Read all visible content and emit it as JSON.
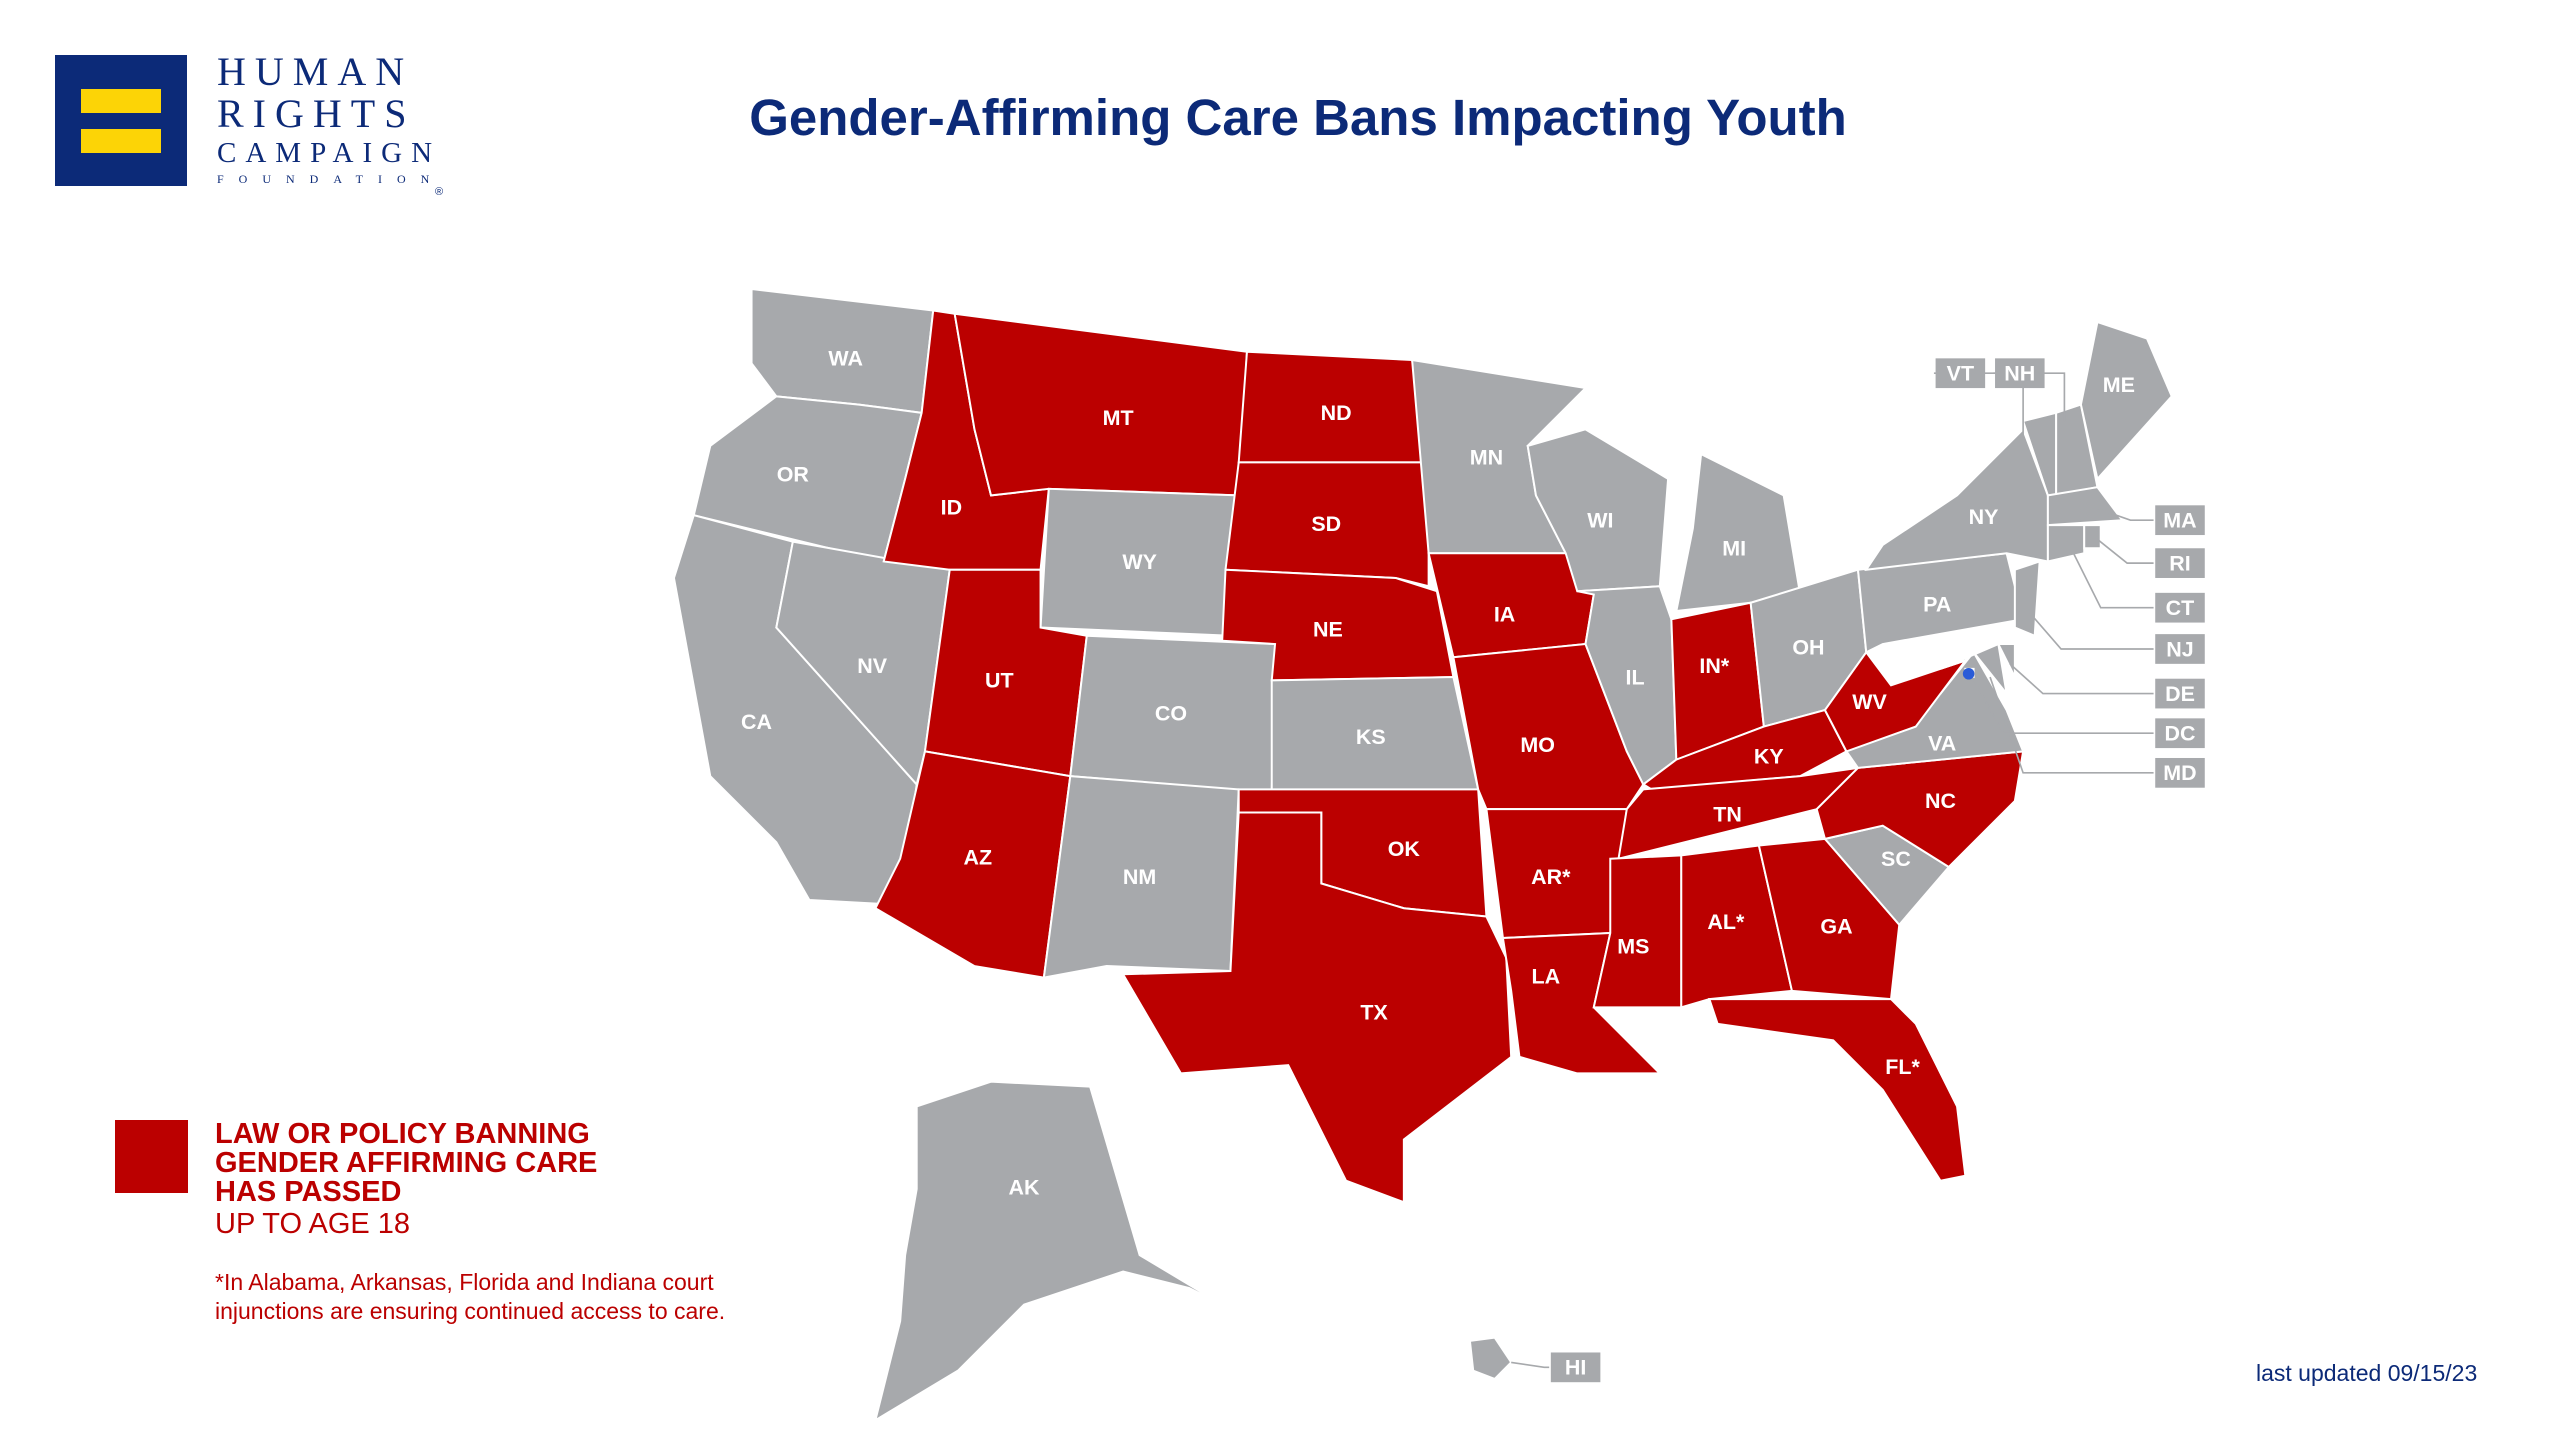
{
  "logo": {
    "line1": "HUMAN",
    "line2": "RIGHTS",
    "line3": "CAMPAIGN",
    "line4": "FOUNDATION",
    "reg": "®"
  },
  "title": "Gender-Affirming Care Bans Impacting Youth",
  "colors": {
    "banned": "#bb0000",
    "not_banned": "#a7a9ac",
    "brand_navy": "#0c2a78",
    "brand_yellow": "#fcd406"
  },
  "legend": {
    "line1": "LAW OR POLICY BANNING",
    "line2": "GENDER AFFIRMING CARE",
    "line3": "HAS PASSED",
    "line4": "UP TO AGE 18",
    "note1": "*In Alabama, Arkansas, Florida and Indiana court",
    "note2": "injunctions are ensuring continued access to care."
  },
  "last_updated": "last updated 09/15/23",
  "states": [
    {
      "abbr": "WA",
      "label": "WA",
      "banned": false
    },
    {
      "abbr": "OR",
      "label": "OR",
      "banned": false
    },
    {
      "abbr": "CA",
      "label": "CA",
      "banned": false
    },
    {
      "abbr": "NV",
      "label": "NV",
      "banned": false
    },
    {
      "abbr": "ID",
      "label": "ID",
      "banned": true
    },
    {
      "abbr": "MT",
      "label": "MT",
      "banned": true
    },
    {
      "abbr": "WY",
      "label": "WY",
      "banned": false
    },
    {
      "abbr": "UT",
      "label": "UT",
      "banned": true
    },
    {
      "abbr": "CO",
      "label": "CO",
      "banned": false
    },
    {
      "abbr": "AZ",
      "label": "AZ",
      "banned": true
    },
    {
      "abbr": "NM",
      "label": "NM",
      "banned": false
    },
    {
      "abbr": "ND",
      "label": "ND",
      "banned": true
    },
    {
      "abbr": "SD",
      "label": "SD",
      "banned": true
    },
    {
      "abbr": "NE",
      "label": "NE",
      "banned": true
    },
    {
      "abbr": "KS",
      "label": "KS",
      "banned": false
    },
    {
      "abbr": "OK",
      "label": "OK",
      "banned": true
    },
    {
      "abbr": "TX",
      "label": "TX",
      "banned": true
    },
    {
      "abbr": "MN",
      "label": "MN",
      "banned": false
    },
    {
      "abbr": "IA",
      "label": "IA",
      "banned": true
    },
    {
      "abbr": "MO",
      "label": "MO",
      "banned": true
    },
    {
      "abbr": "AR",
      "label": "AR*",
      "banned": true
    },
    {
      "abbr": "LA",
      "label": "LA",
      "banned": true
    },
    {
      "abbr": "WI",
      "label": "WI",
      "banned": false
    },
    {
      "abbr": "IL",
      "label": "IL",
      "banned": false
    },
    {
      "abbr": "MI",
      "label": "MI",
      "banned": false
    },
    {
      "abbr": "IN",
      "label": "IN*",
      "banned": true
    },
    {
      "abbr": "OH",
      "label": "OH",
      "banned": false
    },
    {
      "abbr": "KY",
      "label": "KY",
      "banned": true
    },
    {
      "abbr": "TN",
      "label": "TN",
      "banned": true
    },
    {
      "abbr": "MS",
      "label": "MS",
      "banned": true
    },
    {
      "abbr": "AL",
      "label": "AL*",
      "banned": true
    },
    {
      "abbr": "GA",
      "label": "GA",
      "banned": true
    },
    {
      "abbr": "FL",
      "label": "FL*",
      "banned": true
    },
    {
      "abbr": "SC",
      "label": "SC",
      "banned": false
    },
    {
      "abbr": "NC",
      "label": "NC",
      "banned": true
    },
    {
      "abbr": "VA",
      "label": "VA",
      "banned": false
    },
    {
      "abbr": "WV",
      "label": "WV",
      "banned": true
    },
    {
      "abbr": "PA",
      "label": "PA",
      "banned": false
    },
    {
      "abbr": "NY",
      "label": "NY",
      "banned": false
    },
    {
      "abbr": "VT",
      "label": "VT",
      "banned": false
    },
    {
      "abbr": "NH",
      "label": "NH",
      "banned": false
    },
    {
      "abbr": "ME",
      "label": "ME",
      "banned": false
    },
    {
      "abbr": "MA",
      "label": "MA",
      "banned": false
    },
    {
      "abbr": "CT",
      "label": "CT",
      "banned": false
    },
    {
      "abbr": "RI",
      "label": "RI",
      "banned": false
    },
    {
      "abbr": "NJ",
      "label": "NJ",
      "banned": false
    },
    {
      "abbr": "DE",
      "label": "DE",
      "banned": false
    },
    {
      "abbr": "MD",
      "label": "MD",
      "banned": false
    },
    {
      "abbr": "DC",
      "label": "DC",
      "banned": false
    },
    {
      "abbr": "AK",
      "label": "AK",
      "banned": false
    },
    {
      "abbr": "HI",
      "label": "HI",
      "banned": false
    }
  ]
}
